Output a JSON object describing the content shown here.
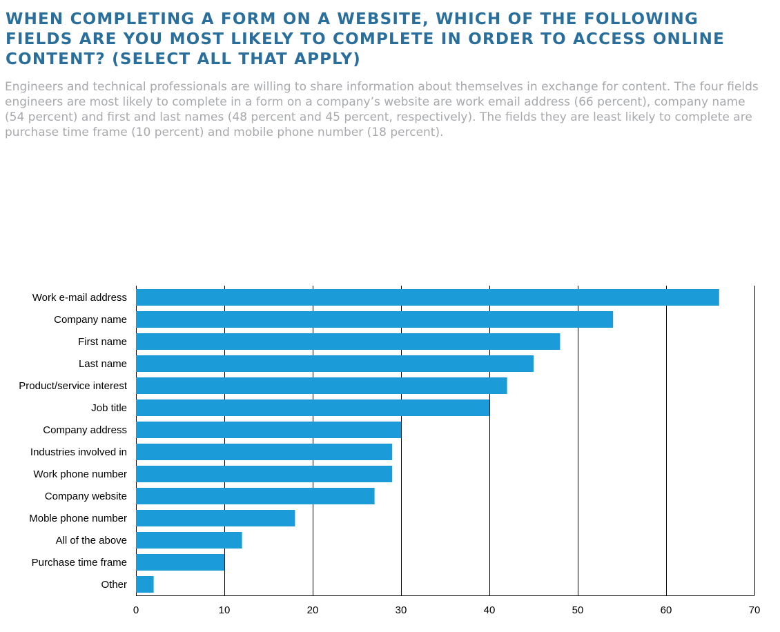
{
  "header": {
    "title": "WHEN COMPLETING A FORM ON A WEBSITE, WHICH OF THE FOLLOWING FIELDS ARE YOU MOST LIKELY TO COMPLETE IN ORDER TO ACCESS ONLINE CONTENT? (SELECT ALL THAT APPLY)",
    "subtitle": "Engineers and technical professionals are willing to share information about themselves in exchange for content. The four fields engineers are most likely to complete in a form on a company’s website are work email address (66 percent), company name (54 percent) and first and last names (48 percent and 45 percent, respectively). The fields they are least likely to complete are purchase time frame (10 percent) and mobile phone number (18 percent)."
  },
  "colors": {
    "title": "#2a6f9c",
    "subtitle": "#a7a9ac",
    "bar": "#1b9cd8",
    "grid": "#000000"
  },
  "chart_data": {
    "type": "bar",
    "orientation": "horizontal",
    "categories": [
      "Work e-mail address",
      "Company name",
      "First name",
      "Last name",
      "Product/service interest",
      "Job title",
      "Company address",
      "Industries involved in",
      "Work phone number",
      "Company website",
      "Moble phone number",
      "All of the above",
      "Purchase time frame",
      "Other"
    ],
    "values": [
      66,
      54,
      48,
      45,
      42,
      40,
      30,
      29,
      29,
      27,
      18,
      12,
      10,
      2
    ],
    "xlim": [
      0,
      70
    ],
    "xticks": [
      0,
      10,
      20,
      30,
      40,
      50,
      60,
      70
    ],
    "grid": "vertical",
    "legend": "none"
  }
}
